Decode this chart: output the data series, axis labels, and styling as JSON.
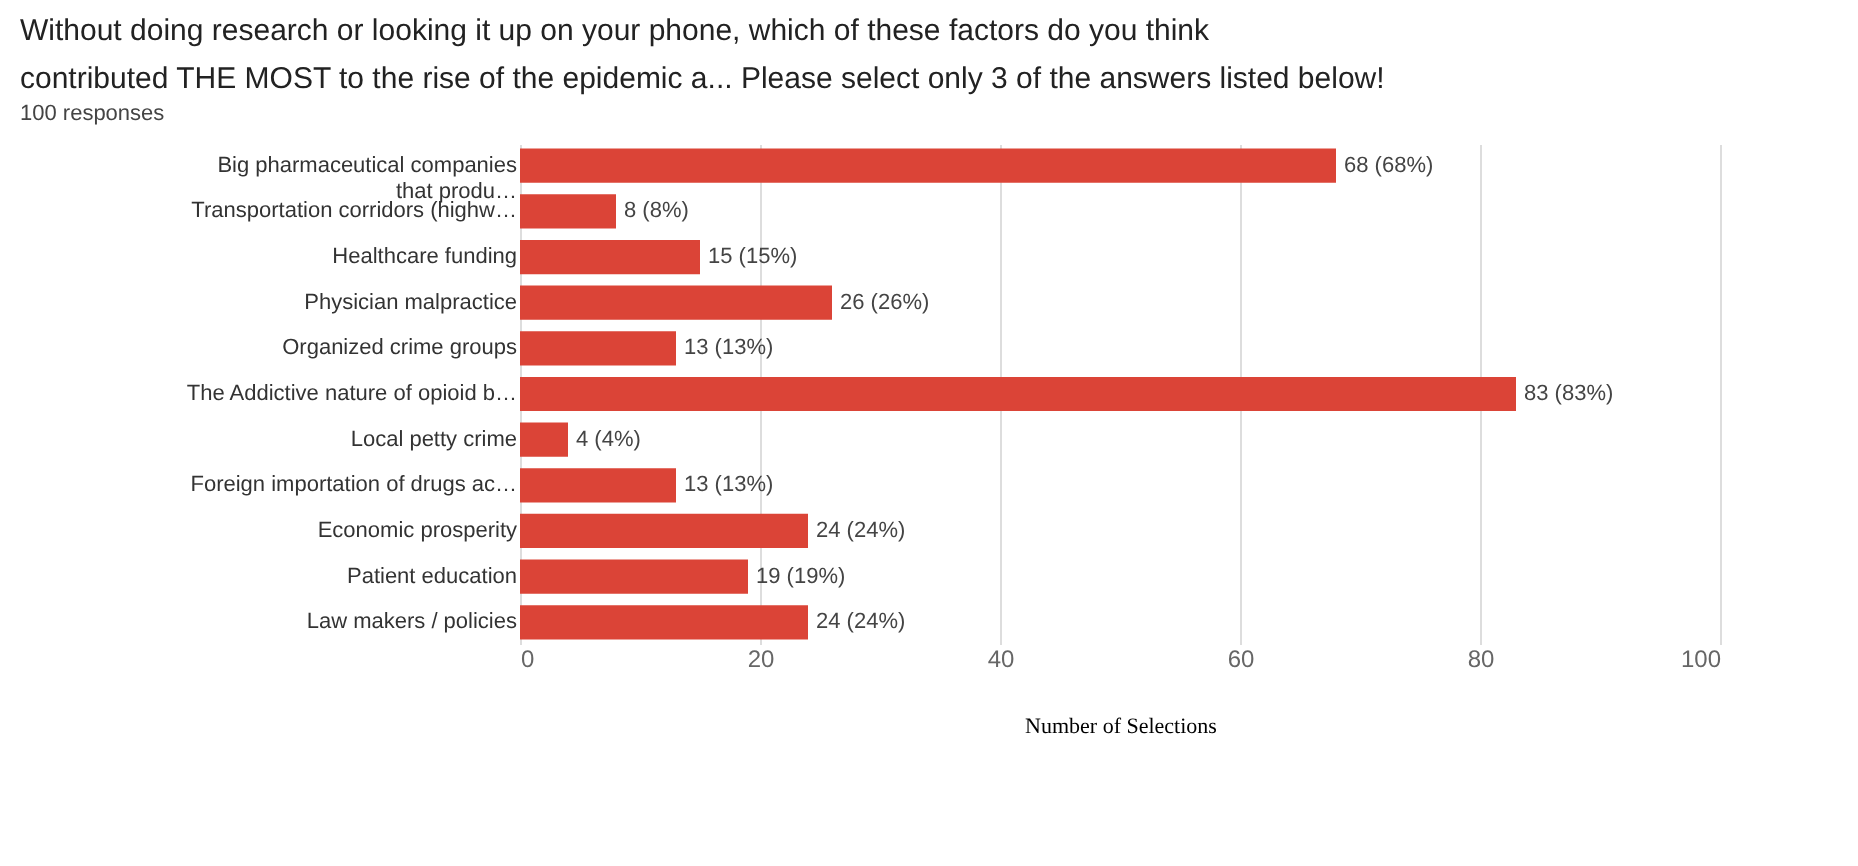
{
  "chart_data": {
    "type": "bar",
    "orientation": "horizontal",
    "title": "Without doing research or looking it up on your phone, which of these factors do you think\ncontributed THE MOST to the rise of the epidemic a... Please select only 3 of the answers listed below!",
    "subtitle": "100 responses",
    "xlabel": "Number of Selections",
    "categories": [
      "Big pharmaceutical companies\nthat produ…",
      "Transportation corridors (highw…",
      "Healthcare funding",
      "Physician malpractice",
      "Organized crime groups",
      "The Addictive nature of opioid b…",
      "Local petty crime",
      "Foreign importation of drugs ac…",
      "Economic prosperity",
      "Patient education",
      "Law makers / policies"
    ],
    "values": [
      68,
      8,
      15,
      26,
      13,
      83,
      4,
      13,
      24,
      19,
      24
    ],
    "value_labels": [
      "68 (68%)",
      "8 (8%)",
      "15 (15%)",
      "26 (26%)",
      "13 (13%)",
      "83 (83%)",
      "4 (4%)",
      "13 (13%)",
      "24 (24%)",
      "19 (19%)",
      "24 (24%)"
    ],
    "color": "#db4437",
    "xlim": [
      0,
      100
    ],
    "xticks": [
      0,
      20,
      40,
      60,
      80,
      100
    ],
    "grid": "x"
  }
}
